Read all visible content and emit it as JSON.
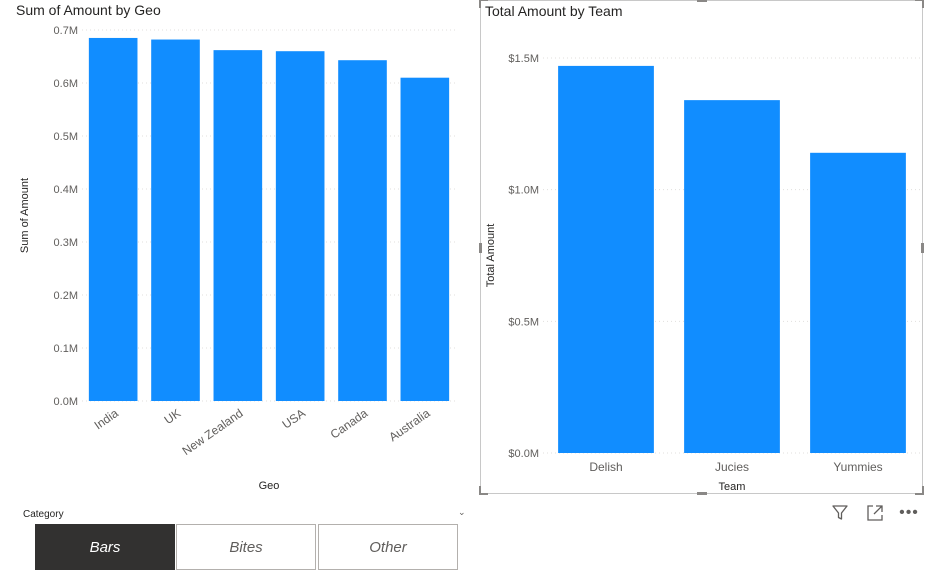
{
  "chart_data": [
    {
      "type": "bar",
      "title": "Sum of Amount by Geo",
      "xlabel": "Geo",
      "ylabel": "Sum of Amount",
      "categories": [
        "India",
        "UK",
        "New Zealand",
        "USA",
        "Canada",
        "Australia"
      ],
      "values": [
        0.685,
        0.682,
        0.662,
        0.66,
        0.643,
        0.61
      ],
      "ylim": [
        0,
        0.7
      ],
      "yticks": [
        "0.0M",
        "0.1M",
        "0.2M",
        "0.3M",
        "0.4M",
        "0.5M",
        "0.6M",
        "0.7M"
      ],
      "grid": true,
      "bar_color": "#118dff"
    },
    {
      "type": "bar",
      "title": "Total Amount by Team",
      "xlabel": "Team",
      "ylabel": "Total Amount",
      "categories": [
        "Delish",
        "Jucies",
        "Yummies"
      ],
      "values": [
        1.47,
        1.34,
        1.14
      ],
      "ylim": [
        0,
        1.5
      ],
      "yticks": [
        "$0.0M",
        "$0.5M",
        "$1.0M",
        "$1.5M"
      ],
      "grid": true,
      "bar_color": "#118dff"
    }
  ],
  "slicer": {
    "header": "Category",
    "chevron_icon": "chevron-down-icon",
    "options": [
      "Bars",
      "Bites",
      "Other"
    ],
    "selected": "Bars",
    "selected_color": "#323130"
  },
  "visual_header_icons": [
    "filter-icon",
    "focus-mode-icon",
    "more-options-icon"
  ]
}
